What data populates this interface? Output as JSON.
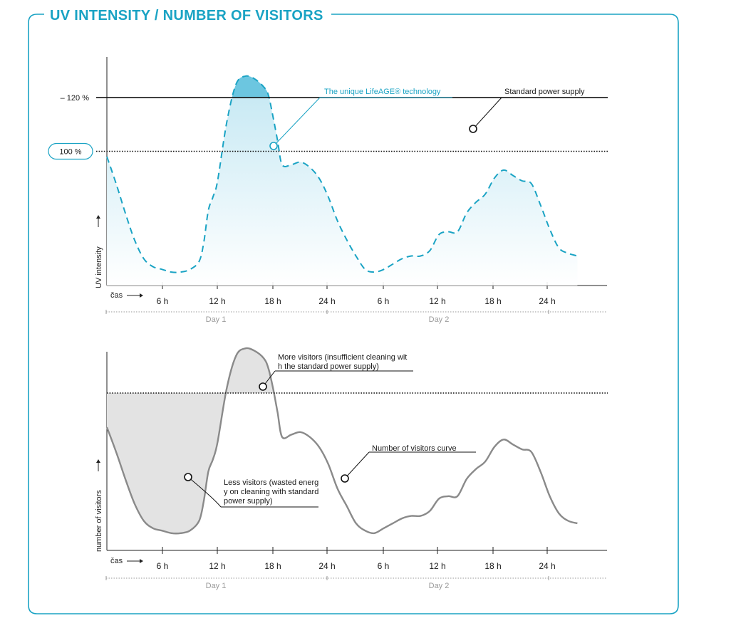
{
  "title": "UV INTENSITY / NUMBER OF VISITORS",
  "colors": {
    "accent": "#1aa3c4",
    "accent_fill": "#6cc6e0",
    "gray_line": "#8a8a8a",
    "gray_fill": "#e3e3e3",
    "axis": "#222222"
  },
  "chart_data": [
    {
      "type": "area",
      "ylabel": "UV intensity",
      "xlabel": "čas",
      "x_ticks": [
        "6 h",
        "12 h",
        "18 h",
        "24 h",
        "6 h",
        "12 h",
        "18 h",
        "24 h"
      ],
      "days": [
        "Day 1",
        "Day 2"
      ],
      "reference_lines": [
        {
          "label": "120 %",
          "value": 120,
          "style": "solid"
        },
        {
          "label": "100 %",
          "value": 100,
          "style": "dotted"
        }
      ],
      "series": [
        {
          "name": "",
          "style": "dashed",
          "x": [
            0,
            1,
            2,
            3,
            4,
            5,
            6,
            7,
            8,
            9,
            10,
            10.5,
            11,
            11.5,
            12,
            13,
            14,
            15,
            16,
            17,
            17.5,
            18,
            18.5,
            19,
            20,
            21,
            22,
            23,
            24,
            25,
            26,
            27,
            28,
            29,
            30,
            31,
            32,
            33,
            34,
            35,
            36,
            37,
            38,
            39,
            40,
            41,
            42,
            43,
            44,
            45,
            46,
            47,
            48,
            49,
            50,
            51
          ],
          "values": [
            98,
            88,
            77,
            67,
            60,
            57,
            56,
            55,
            55,
            56,
            59,
            66,
            78,
            83,
            89,
            111,
            125,
            128,
            127,
            124,
            121,
            113,
            104,
            95,
            95,
            96,
            94,
            90,
            83,
            74,
            67,
            61,
            56,
            55,
            56,
            58,
            60,
            61,
            61,
            63,
            69,
            70,
            70,
            77,
            81,
            84,
            90,
            93,
            91,
            89,
            88,
            80,
            71,
            64,
            62,
            61
          ]
        }
      ],
      "annotations": [
        {
          "text": "The unique LifeAGE® technology",
          "color": "accent"
        },
        {
          "text": "Standard power supply"
        }
      ]
    },
    {
      "type": "line",
      "ylabel": "number of visitors",
      "xlabel": "čas",
      "x_ticks": [
        "6 h",
        "12 h",
        "18 h",
        "24 h",
        "6 h",
        "12 h",
        "18 h",
        "24 h"
      ],
      "days": [
        "Day 1",
        "Day 2"
      ],
      "series": [
        {
          "name": "",
          "x": [
            0,
            1,
            2,
            3,
            4,
            5,
            6,
            7,
            8,
            9,
            10,
            10.5,
            11,
            11.5,
            12,
            13,
            14,
            15,
            16,
            17,
            17.5,
            18,
            18.5,
            19,
            20,
            21,
            22,
            23,
            24,
            25,
            26,
            27,
            28,
            29,
            30,
            31,
            32,
            33,
            34,
            35,
            36,
            37,
            38,
            39,
            40,
            41,
            42,
            43,
            44,
            45,
            46,
            47,
            48,
            49,
            50,
            51
          ],
          "values": [
            85,
            75,
            64,
            54,
            47,
            44,
            43,
            42,
            42,
            43,
            47,
            55,
            67,
            72,
            79,
            101,
            114,
            117,
            116,
            113,
            109,
            101,
            91,
            81,
            82,
            83,
            81,
            77,
            70,
            60,
            53,
            46,
            43,
            42,
            44,
            46,
            48,
            49,
            49,
            51,
            56,
            57,
            57,
            64,
            68,
            71,
            77,
            80,
            78,
            76,
            75,
            67,
            57,
            50,
            47,
            46
          ]
        }
      ],
      "annotations": [
        {
          "text": "More visitors (insufficient cleaning with the standard power supply)"
        },
        {
          "text": "Number of visitors curve"
        },
        {
          "text": "Less visitors (wasted energy on cleaning with standard power supply)"
        }
      ]
    }
  ]
}
